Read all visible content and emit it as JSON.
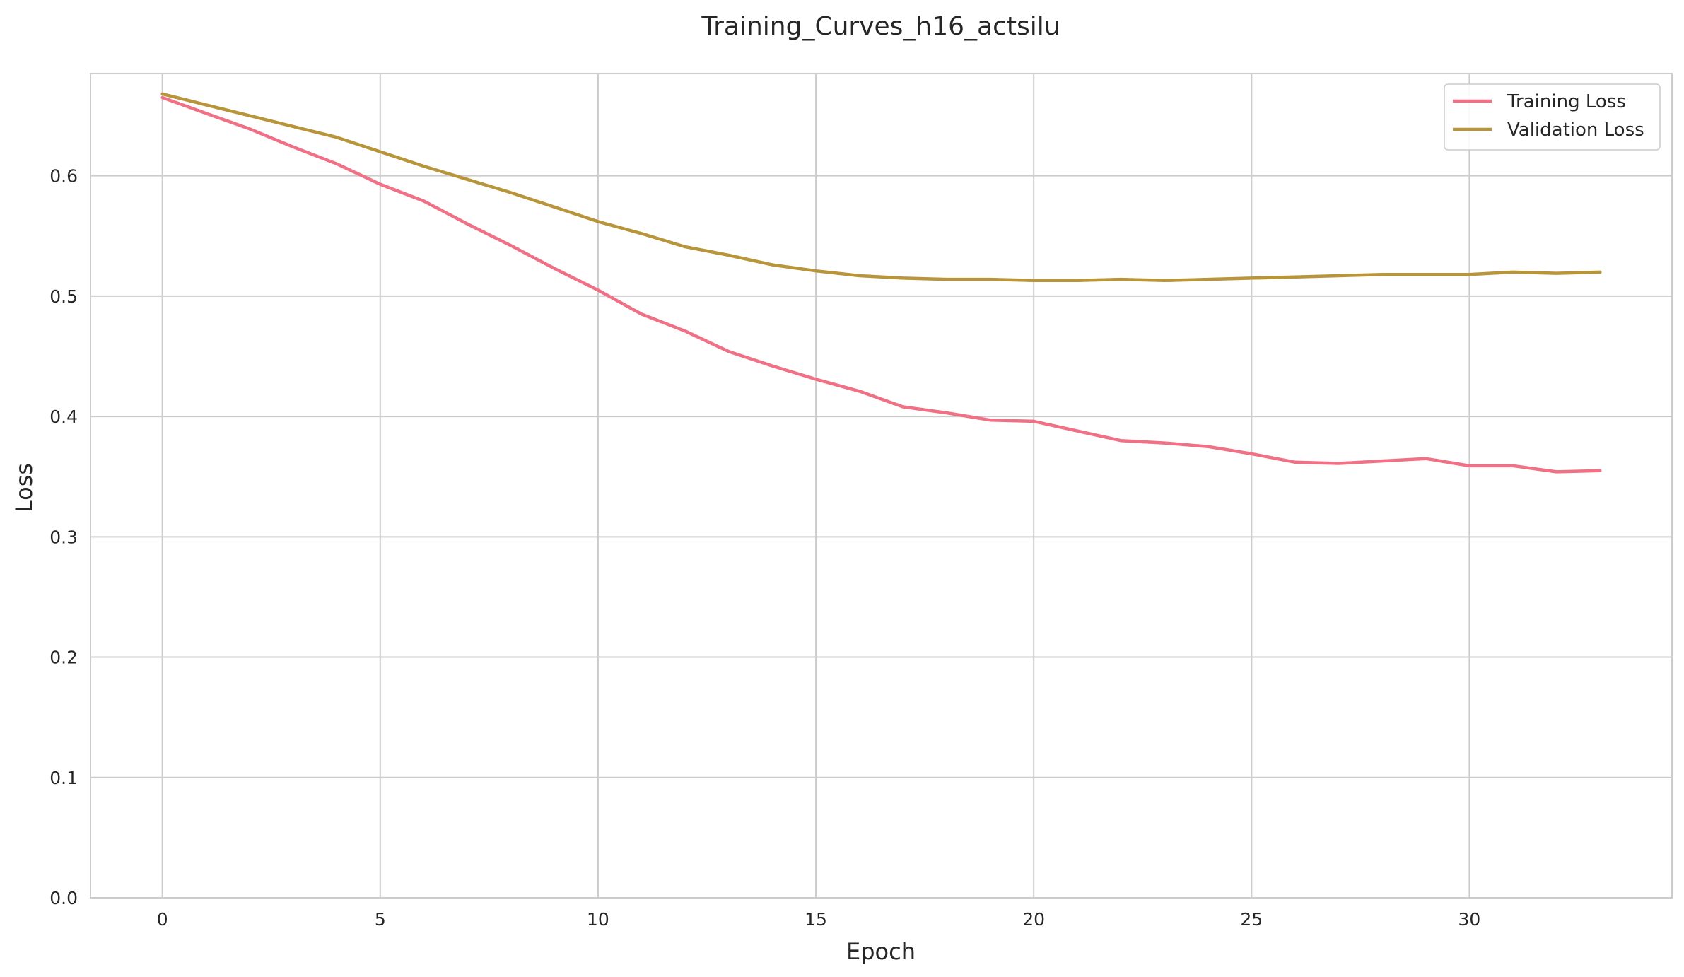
{
  "chart_data": {
    "type": "line",
    "title": "Training_Curves_h16_actsilu",
    "xlabel": "Epoch",
    "ylabel": "Loss",
    "xlim": [
      -1.65,
      34.65
    ],
    "ylim": [
      0.0,
      0.685
    ],
    "xticks": [
      0,
      5,
      10,
      15,
      20,
      25,
      30
    ],
    "yticks": [
      0.0,
      0.1,
      0.2,
      0.3,
      0.4,
      0.5,
      0.6
    ],
    "ytick_labels": [
      "0.0",
      "0.1",
      "0.2",
      "0.3",
      "0.4",
      "0.5",
      "0.6"
    ],
    "grid": true,
    "legend_position": "top-right",
    "x": [
      0,
      1,
      2,
      3,
      4,
      5,
      6,
      7,
      8,
      9,
      10,
      11,
      12,
      13,
      14,
      15,
      16,
      17,
      18,
      19,
      20,
      21,
      22,
      23,
      24,
      25,
      26,
      27,
      28,
      29,
      30,
      31,
      32,
      33
    ],
    "series": [
      {
        "name": "Training Loss",
        "color": "#f07086",
        "values": [
          0.665,
          0.652,
          0.639,
          0.624,
          0.61,
          0.593,
          0.579,
          0.56,
          0.542,
          0.523,
          0.505,
          0.485,
          0.471,
          0.454,
          0.442,
          0.431,
          0.421,
          0.408,
          0.403,
          0.397,
          0.396,
          0.388,
          0.38,
          0.378,
          0.375,
          0.369,
          0.362,
          0.361,
          0.363,
          0.365,
          0.359,
          0.359,
          0.354,
          0.355
        ]
      },
      {
        "name": "Validation Loss",
        "color": "#b8943a",
        "values": [
          0.668,
          0.659,
          0.65,
          0.641,
          0.632,
          0.62,
          0.608,
          0.597,
          0.586,
          0.574,
          0.562,
          0.552,
          0.541,
          0.534,
          0.526,
          0.521,
          0.517,
          0.515,
          0.514,
          0.514,
          0.513,
          0.513,
          0.514,
          0.513,
          0.514,
          0.515,
          0.516,
          0.517,
          0.518,
          0.518,
          0.518,
          0.52,
          0.519,
          0.52
        ]
      }
    ]
  }
}
